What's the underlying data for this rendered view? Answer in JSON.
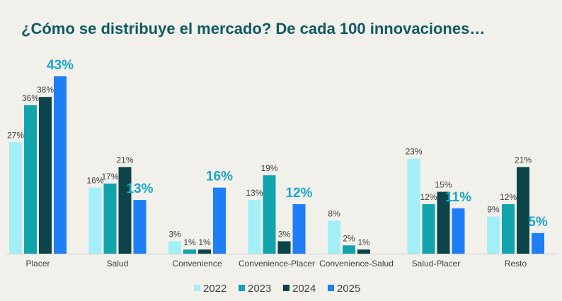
{
  "title": "¿Cómo se distribuye el mercado? De cada 100 innovaciones…",
  "chart_data": {
    "type": "bar",
    "categories": [
      "Placer",
      "Salud",
      "Convenience",
      "Convenience-Placer",
      "Convenience-Salud",
      "Salud-Placer",
      "Resto"
    ],
    "series": [
      {
        "name": "2022",
        "color": "#a3eff8",
        "values": [
          27,
          16,
          3,
          13,
          8,
          23,
          9
        ],
        "labels": [
          "27%",
          "16%",
          "3%",
          "13%",
          "8%",
          "23%",
          "9%"
        ]
      },
      {
        "name": "2023",
        "color": "#12a4ad",
        "values": [
          36,
          17,
          1,
          19,
          2,
          12,
          12
        ],
        "labels": [
          "36%",
          "17%",
          "1%",
          "19%",
          "2%",
          "12%",
          "12%"
        ]
      },
      {
        "name": "2024",
        "color": "#0d4449",
        "values": [
          38,
          21,
          1,
          3,
          1,
          15,
          21
        ],
        "labels": [
          "38%",
          "21%",
          "1%",
          "3%",
          "1%",
          "15%",
          "21%"
        ]
      },
      {
        "name": "2025",
        "color": "#1e7ef6",
        "values": [
          43,
          13,
          16,
          12,
          0,
          11,
          5
        ],
        "labels": [
          "43%",
          "13%",
          "16%",
          "12%",
          "",
          "11%",
          "5%"
        ]
      }
    ],
    "highlight_series": "2025",
    "highlight_color": "#1aa7c9",
    "ylim": [
      0,
      43
    ],
    "grid": false,
    "legend_position": "bottom"
  }
}
